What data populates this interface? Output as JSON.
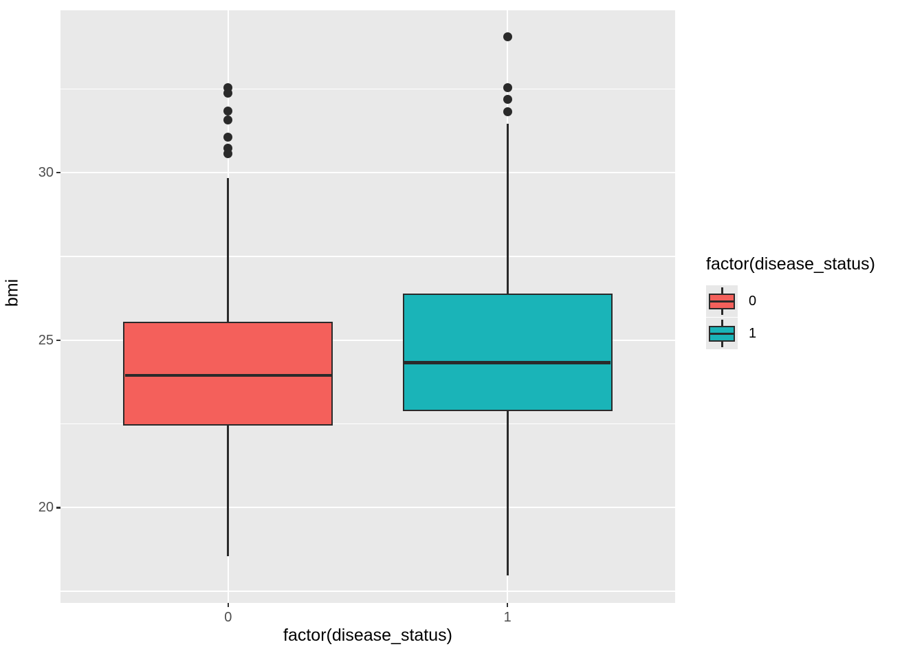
{
  "chart_data": {
    "type": "boxplot",
    "xlabel": "factor(disease_status)",
    "ylabel": "bmi",
    "categories": [
      "0",
      "1"
    ],
    "y_axis": {
      "ticks": [
        {
          "value": 20,
          "label": "20"
        },
        {
          "value": 25,
          "label": "25"
        },
        {
          "value": 30,
          "label": "30"
        }
      ],
      "minor_ticks": [
        17.5,
        22.5,
        27.5,
        32.5
      ],
      "domain": [
        17.15,
        34.85
      ]
    },
    "series": [
      {
        "category": "0",
        "fill": "#F4605B",
        "stats": {
          "whisker_low": 18.55,
          "q1": 22.45,
          "median": 23.95,
          "q3": 25.55,
          "whisker_high": 29.85
        },
        "outliers": [
          30.57,
          30.74,
          31.06,
          31.58,
          31.85,
          32.37,
          32.55
        ]
      },
      {
        "category": "1",
        "fill": "#1AB4B8",
        "stats": {
          "whisker_low": 17.97,
          "q1": 22.88,
          "median": 24.33,
          "q3": 26.39,
          "whisker_high": 31.46
        },
        "outliers": [
          31.83,
          32.2,
          32.55,
          34.07
        ]
      }
    ],
    "legend": {
      "title": "factor(disease_status)",
      "position": "right",
      "entries": [
        {
          "label": "0",
          "fill": "#F4605B"
        },
        {
          "label": "1",
          "fill": "#1AB4B8"
        }
      ]
    },
    "style": {
      "panel_bg": "#E9E9E9",
      "grid": "#FFFFFF",
      "stroke": "#2A2A2A",
      "tick_mark_color": "#333333",
      "tick_label_color": "#4D4D4D",
      "legend_key_bg": "#E8E8E8",
      "background": "#FFFFFF"
    }
  }
}
